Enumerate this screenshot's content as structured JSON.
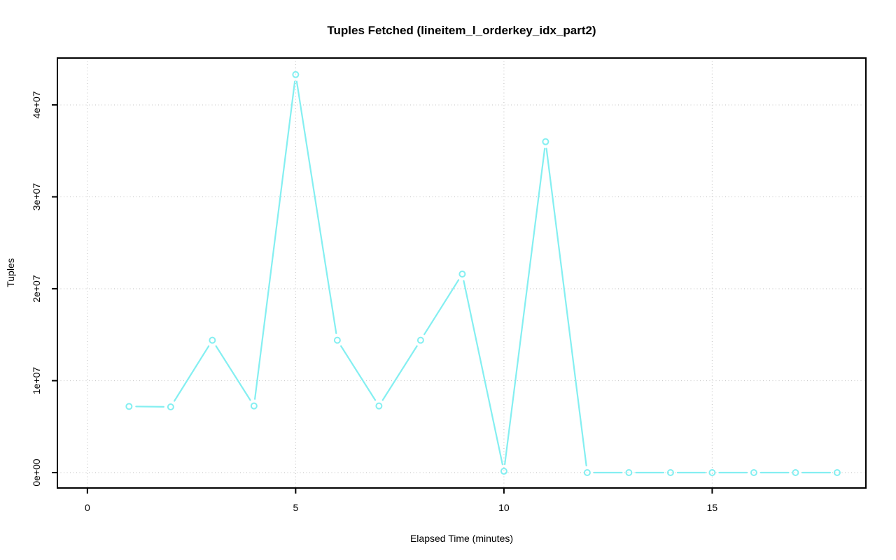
{
  "chart_data": {
    "type": "line",
    "title": "Tuples Fetched (lineitem_l_orderkey_idx_part2)",
    "xlabel": "Elapsed Time (minutes)",
    "ylabel": "Tuples",
    "x": [
      1,
      2,
      3,
      4,
      5,
      6,
      7,
      8,
      9,
      10,
      11,
      12,
      13,
      14,
      15,
      16,
      17,
      18
    ],
    "values": [
      7200000,
      7150000,
      14400000,
      7250000,
      43300000,
      14400000,
      7250000,
      14400000,
      21600000,
      150000,
      36000000,
      0,
      0,
      0,
      0,
      0,
      0,
      0
    ],
    "series_name": "tuples_fetched",
    "xlim": [
      -0.72,
      18.69
    ],
    "ylim": [
      -1673000,
      45100000
    ],
    "x_ticks": {
      "values": [
        0,
        5,
        10,
        15
      ],
      "labels": [
        "0",
        "5",
        "10",
        "15"
      ]
    },
    "y_ticks": {
      "values": [
        0,
        10000000,
        20000000,
        30000000,
        40000000
      ],
      "labels": [
        "0e+00",
        "1e+07",
        "2e+07",
        "3e+07",
        "4e+07"
      ]
    },
    "grid": true,
    "legend": "none",
    "marker": "open-circle",
    "colors": {
      "line": "#84EFF1",
      "grid": "#C9C9C9",
      "axis": "#000000",
      "background": "#FFFFFF"
    }
  }
}
